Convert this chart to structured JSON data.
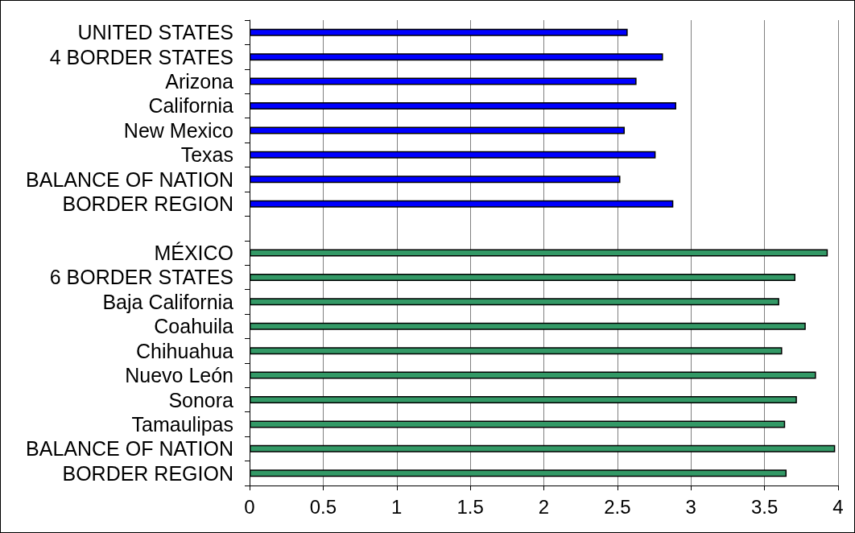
{
  "chart_data": {
    "type": "bar",
    "orientation": "horizontal",
    "categories": [
      "UNITED STATES",
      "4 BORDER STATES",
      "Arizona",
      "California",
      "New Mexico",
      "Texas",
      "BALANCE OF NATION",
      "BORDER REGION",
      null,
      "MÉXICO",
      "6 BORDER STATES",
      "Baja California",
      "Coahuila",
      "Chihuahua",
      "Nuevo León",
      "Sonora",
      "Tamaulipas",
      "BALANCE OF NATION",
      "BORDER REGION"
    ],
    "values": [
      2.57,
      2.81,
      2.63,
      2.9,
      2.55,
      2.76,
      2.52,
      2.88,
      null,
      3.93,
      3.71,
      3.6,
      3.78,
      3.62,
      3.85,
      3.72,
      3.64,
      3.98,
      3.65
    ],
    "colors": [
      "#0000ff",
      "#0000ff",
      "#0000ff",
      "#0000ff",
      "#0000ff",
      "#0000ff",
      "#0000ff",
      "#0000ff",
      null,
      "#339966",
      "#339966",
      "#339966",
      "#339966",
      "#339966",
      "#339966",
      "#339966",
      "#339966",
      "#339966",
      "#339966"
    ],
    "xlim": [
      0,
      4
    ],
    "xticks": [
      0,
      0.5,
      1,
      1.5,
      2,
      2.5,
      3,
      3.5,
      4
    ],
    "grid": "x"
  }
}
